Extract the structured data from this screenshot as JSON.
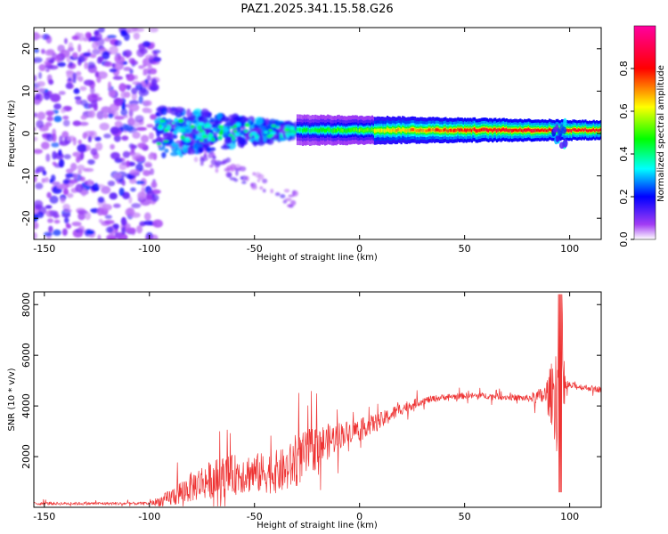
{
  "chart_data": [
    {
      "type": "heatmap",
      "title": "PAZ1.2025.341.15.58.G26",
      "xlabel": "Height of straight line (km)",
      "ylabel": "Frequency (Hz)",
      "xlim": [
        -155,
        115
      ],
      "ylim": [
        -25,
        25
      ],
      "xticks": [
        -150,
        -100,
        -50,
        0,
        50,
        100
      ],
      "yticks": [
        -20,
        -10,
        0,
        10,
        20
      ],
      "colorbar": {
        "label": "Normalized spectral amplitude",
        "range": [
          0,
          1
        ],
        "ticks": [
          0.0,
          0.2,
          0.4,
          0.6,
          0.8
        ],
        "tick_labels": [
          "0.0",
          "0.2",
          "0.4",
          "0.6",
          "0.8"
        ],
        "colors": [
          "#ffffff",
          "#a23cf4",
          "#0000ff",
          "#00ffff",
          "#00ff00",
          "#ffff00",
          "#ff0000",
          "#ff00a0"
        ]
      },
      "regions": [
        {
          "name": "noise",
          "x": [
            -155,
            -96
          ],
          "freq": [
            -25,
            25
          ],
          "amplitude": 0.15
        },
        {
          "name": "transition",
          "x": [
            -96,
            -30
          ],
          "freq": [
            -5,
            5
          ],
          "amplitude": 0.3
        },
        {
          "name": "tail",
          "x": [
            -80,
            -30
          ],
          "freq": [
            -17,
            -8
          ],
          "amplitude": 0.1
        },
        {
          "name": "signal-line",
          "x": [
            -30,
            115
          ],
          "freq": [
            0.3,
            0.9
          ],
          "amplitude": 0.9
        }
      ]
    },
    {
      "type": "line",
      "title": "",
      "xlabel": "Height of straight line (km)",
      "ylabel": "SNR (10 * v/v)",
      "xlim": [
        -155,
        115
      ],
      "ylim": [
        0,
        8500
      ],
      "xticks": [
        -150,
        -100,
        -50,
        0,
        50,
        100
      ],
      "yticks": [
        2000,
        4000,
        6000,
        8000
      ],
      "series": [
        {
          "name": "SNR",
          "color": "#ee3333",
          "x": [
            -155,
            -100,
            -92,
            -85,
            -75,
            -65,
            -55,
            -45,
            -35,
            -30,
            -22,
            -15,
            -8,
            0,
            10,
            20,
            30,
            40,
            50,
            60,
            70,
            80,
            88,
            92,
            94,
            96,
            98,
            100,
            105,
            110,
            115
          ],
          "y": [
            150,
            150,
            300,
            600,
            1000,
            1200,
            1350,
            1350,
            1450,
            1800,
            2300,
            2600,
            2900,
            3100,
            3400,
            3900,
            4200,
            4350,
            4400,
            4400,
            4350,
            4300,
            4400,
            4500,
            4600,
            4800,
            4800,
            4800,
            4750,
            4700,
            4650
          ],
          "spread": [
            60,
            60,
            300,
            500,
            700,
            800,
            800,
            800,
            900,
            1000,
            900,
            700,
            500,
            400,
            350,
            250,
            150,
            120,
            120,
            120,
            120,
            130,
            400,
            1400,
            2600,
            2600,
            300,
            150,
            120,
            120,
            120
          ]
        }
      ]
    }
  ]
}
